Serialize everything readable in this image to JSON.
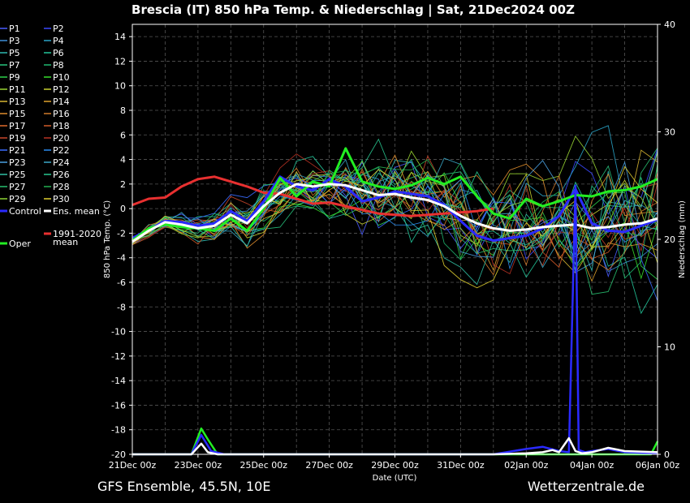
{
  "chart_data": {
    "type": "line",
    "title": "Brescia  (IT)  850 hPa Temp. & Niederschlag | Sat, 21Dec2024 00Z",
    "xlabel": "Date (UTC)",
    "ylabel": "850 hPa Temp. (°C)",
    "y2label": "Niederschlag (mm)",
    "footer_left": "GFS Ensemble, 45.5N, 10E",
    "footer_right": "Wetterzentrale.de",
    "xlim": [
      0,
      16
    ],
    "ylim": [
      -20,
      15
    ],
    "y2lim": [
      0,
      40
    ],
    "grid": true,
    "x_ticks": [
      "21Dec 00z",
      "23Dec 00z",
      "25Dec 00z",
      "27Dec 00z",
      "29Dec 00z",
      "31Dec 00z",
      "02Jan 00z",
      "04Jan 00z",
      "06Jan 00z"
    ],
    "x_tick_days": [
      0,
      2,
      4,
      6,
      8,
      10,
      12,
      14,
      16
    ],
    "y_ticks": [
      14,
      12,
      10,
      8,
      6,
      4,
      2,
      0,
      -2,
      -4,
      -6,
      -8,
      -10,
      -12,
      -14,
      -16,
      -18,
      -20
    ],
    "y2_ticks": [
      40,
      30,
      20,
      10,
      0
    ],
    "legend_rows": [
      [
        {
          "name": "P1",
          "color": "#4a5cff"
        },
        {
          "name": "P2",
          "color": "#3a48ff"
        }
      ],
      [
        {
          "name": "P3",
          "color": "#3d8fd8"
        },
        {
          "name": "P4",
          "color": "#2aa4c8"
        }
      ],
      [
        {
          "name": "P5",
          "color": "#2fb8b0"
        },
        {
          "name": "P6",
          "color": "#22c69a"
        }
      ],
      [
        {
          "name": "P7",
          "color": "#28c47e"
        },
        {
          "name": "P8",
          "color": "#1fb870"
        }
      ],
      [
        {
          "name": "P9",
          "color": "#2ed14a"
        },
        {
          "name": "P10",
          "color": "#36dd2a"
        }
      ],
      [
        {
          "name": "P11",
          "color": "#9ad632"
        },
        {
          "name": "P12",
          "color": "#c8d030"
        }
      ],
      [
        {
          "name": "P13",
          "color": "#d8b632"
        },
        {
          "name": "P14",
          "color": "#e0a22e"
        }
      ],
      [
        {
          "name": "P15",
          "color": "#e08e2e"
        },
        {
          "name": "P16",
          "color": "#d07a2a"
        }
      ],
      [
        {
          "name": "P17",
          "color": "#e06a2a"
        },
        {
          "name": "P18",
          "color": "#d05a28"
        }
      ],
      [
        {
          "name": "P19",
          "color": "#c8452a"
        },
        {
          "name": "P20",
          "color": "#b83224"
        }
      ],
      [
        {
          "name": "P21",
          "color": "#3a6cff"
        },
        {
          "name": "P22",
          "color": "#2a8cf0"
        }
      ],
      [
        {
          "name": "P23",
          "color": "#4aa0e0"
        },
        {
          "name": "P24",
          "color": "#3aa8c8"
        }
      ],
      [
        {
          "name": "P25",
          "color": "#30c0a4"
        },
        {
          "name": "P26",
          "color": "#28c890"
        }
      ],
      [
        {
          "name": "P27",
          "color": "#28c070"
        },
        {
          "name": "P28",
          "color": "#22b050"
        }
      ],
      [
        {
          "name": "P29",
          "color": "#8ed632"
        },
        {
          "name": "P30",
          "color": "#e0d030"
        }
      ],
      [
        {
          "name": "Control",
          "color": "#2a2aff"
        },
        {
          "name": "Ens. mean",
          "color": "#ffffff"
        }
      ],
      [
        {
          "name": "",
          "color": ""
        },
        {
          "name": "1991-2020\nmean",
          "color": "#e83030"
        }
      ],
      [
        {
          "name": "Oper",
          "color": "#22ee22"
        },
        {
          "name": "",
          "color": ""
        }
      ]
    ],
    "series": [
      {
        "name": "Ens. mean",
        "role": "mean",
        "x": [
          0,
          0.5,
          1,
          1.5,
          2,
          2.5,
          3,
          3.5,
          4,
          4.5,
          5,
          5.5,
          6,
          6.5,
          7,
          7.5,
          8,
          8.5,
          9,
          9.5,
          10,
          10.5,
          11,
          11.5,
          12,
          12.5,
          13,
          13.5,
          14,
          14.5,
          15,
          15.5,
          16
        ],
        "y": [
          -2.7,
          -1.8,
          -1.1,
          -1.3,
          -1.6,
          -1.4,
          -0.5,
          -1.2,
          0.2,
          1.3,
          2.0,
          1.8,
          2.0,
          1.9,
          1.5,
          1.1,
          1.2,
          0.9,
          0.7,
          0.2,
          -0.6,
          -1.2,
          -1.6,
          -1.8,
          -1.7,
          -1.5,
          -1.4,
          -1.3,
          -1.6,
          -1.5,
          -1.3,
          -1.2,
          -0.8
        ]
      },
      {
        "name": "Oper",
        "role": "oper",
        "x": [
          0,
          0.5,
          1,
          1.5,
          2,
          2.5,
          3,
          3.5,
          4,
          4.5,
          5,
          5.5,
          6,
          6.5,
          7,
          7.5,
          8,
          8.5,
          9,
          9.5,
          10,
          10.5,
          11,
          11.5,
          12,
          12.5,
          13,
          13.5,
          14,
          14.5,
          15,
          15.5,
          16
        ],
        "y": [
          -2.6,
          -1.6,
          -1.3,
          -1.5,
          -1.6,
          -1.8,
          -0.8,
          -1.8,
          0.0,
          2.5,
          1.0,
          2.2,
          1.8,
          4.9,
          2.2,
          1.8,
          1.6,
          1.9,
          2.5,
          2.0,
          2.6,
          1.0,
          -0.4,
          -0.8,
          0.8,
          0.2,
          0.6,
          1.1,
          1.0,
          1.4,
          1.5,
          1.8,
          2.4
        ]
      },
      {
        "name": "Control",
        "role": "control",
        "x": [
          0,
          0.5,
          1,
          1.5,
          2,
          2.5,
          3,
          3.5,
          4,
          4.5,
          5,
          5.5,
          6,
          6.5,
          7,
          7.5,
          8,
          8.5,
          9,
          9.5,
          10,
          10.5,
          11,
          11.5,
          12,
          12.5,
          13,
          13.5,
          14,
          14.5,
          15,
          15.5,
          16
        ],
        "y": [
          -2.4,
          -1.7,
          -1.0,
          -1.1,
          -1.4,
          -1.2,
          -0.2,
          -1.0,
          0.6,
          2.6,
          1.8,
          1.5,
          2.4,
          1.8,
          0.6,
          0.9,
          1.4,
          1.2,
          1.0,
          0.3,
          -1.0,
          -2.2,
          -2.6,
          -2.4,
          -2.2,
          -1.6,
          -0.6,
          1.6,
          -1.2,
          -1.8,
          -1.9,
          -1.4,
          -0.9
        ]
      },
      {
        "name": "1991-2020 mean",
        "role": "climate",
        "x": [
          0,
          0.5,
          1,
          1.5,
          2,
          2.5,
          3,
          3.5,
          4,
          4.5,
          5,
          5.5,
          6,
          6.5,
          7,
          7.5,
          8,
          8.5,
          9,
          9.5,
          10,
          10.5,
          11
        ],
        "y": [
          0.3,
          0.8,
          0.9,
          1.8,
          2.4,
          2.6,
          2.2,
          1.8,
          1.3,
          1.2,
          0.8,
          0.4,
          0.5,
          0.2,
          -0.1,
          -0.4,
          -0.5,
          -0.6,
          -0.5,
          -0.4,
          -0.3,
          -0.2,
          0.0
        ]
      }
    ],
    "precip_series": [
      {
        "name": "Ens. mean",
        "role": "mean",
        "x": [
          0,
          1,
          1.8,
          2.1,
          2.3,
          2.6,
          3,
          5,
          7,
          9,
          11,
          12,
          12.5,
          12.8,
          13,
          13.3,
          13.5,
          13.7,
          14,
          14.5,
          15,
          16
        ],
        "y": [
          0,
          0,
          0,
          1,
          0.2,
          0,
          0,
          0,
          0,
          0,
          0,
          0.1,
          0.2,
          0.4,
          0.2,
          1.5,
          0.3,
          0.1,
          0.2,
          0.6,
          0.3,
          0.2
        ]
      },
      {
        "name": "Oper",
        "role": "oper",
        "x": [
          0,
          1,
          1.8,
          2.1,
          2.3,
          2.6,
          3,
          5,
          7,
          9,
          11,
          13,
          15,
          15.8,
          16
        ],
        "y": [
          0,
          0,
          0,
          2.4,
          1.4,
          0,
          0,
          0,
          0,
          0,
          0,
          0,
          0,
          0,
          1.2
        ]
      },
      {
        "name": "Control",
        "role": "control",
        "x": [
          0,
          1,
          1.8,
          2.1,
          2.4,
          2.8,
          3,
          5,
          7,
          9,
          11,
          12,
          12.5,
          13,
          13.3,
          13.5,
          13.6,
          13.8,
          14,
          14.5,
          15,
          16
        ],
        "y": [
          0,
          0,
          0,
          1.8,
          0.3,
          0,
          0,
          0,
          0,
          0,
          0,
          0.5,
          0.7,
          0.3,
          0.2,
          25,
          0.4,
          0.2,
          0.3,
          0.5,
          0.2,
          0.1
        ]
      }
    ]
  }
}
